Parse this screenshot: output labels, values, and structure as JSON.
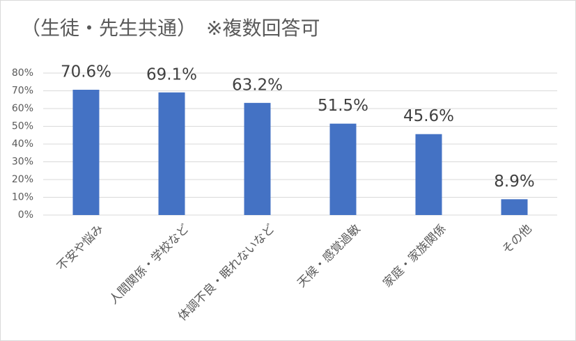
{
  "chart_data": {
    "type": "bar",
    "title": "（生徒・先生共通）　※複数回答可",
    "categories": [
      "不安や悩み",
      "人間関係・学校など",
      "体調不良・眠れないなど",
      "天候・感覚過敏",
      "家庭・家族関係",
      "その他"
    ],
    "values": [
      70.6,
      69.1,
      63.2,
      51.5,
      45.6,
      8.9
    ],
    "value_labels": [
      "70.6%",
      "69.1%",
      "63.2%",
      "51.5%",
      "45.6%",
      "8.9%"
    ],
    "color": "#4472c4",
    "ylim": [
      0,
      80
    ],
    "yticks": [
      {
        "value": 0,
        "label": "0%"
      },
      {
        "value": 10,
        "label": "10%"
      },
      {
        "value": 20,
        "label": "20%"
      },
      {
        "value": 30,
        "label": "30%"
      },
      {
        "value": 40,
        "label": "40%"
      },
      {
        "value": 50,
        "label": "50%"
      },
      {
        "value": 60,
        "label": "60%"
      },
      {
        "value": 70,
        "label": "70%"
      },
      {
        "value": 80,
        "label": "80%"
      }
    ],
    "grid": true
  }
}
